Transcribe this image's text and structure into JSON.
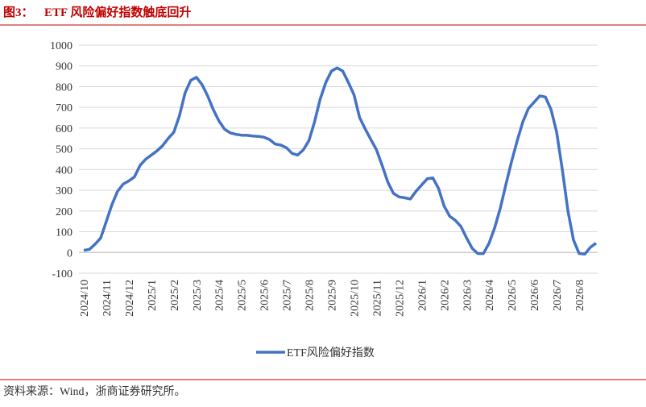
{
  "figure_label": "图3：",
  "source": "资料来源：Wind，浙商证券研究所。",
  "chart_data": {
    "type": "line",
    "title": "ETF 风险偏好指数触底回升",
    "categories": [
      "2024/10",
      null,
      null,
      null,
      "2024/11",
      null,
      null,
      null,
      "2024/12",
      null,
      null,
      null,
      "2025/1",
      null,
      null,
      null,
      "2025/2",
      null,
      null,
      null,
      "2025/3",
      null,
      null,
      null,
      "2025/4",
      null,
      null,
      null,
      "2025/5",
      null,
      null,
      null,
      "2025/6",
      null,
      null,
      null,
      "2025/7",
      null,
      null,
      null,
      "2025/8",
      null,
      null,
      null,
      "2025/9",
      null,
      null,
      null,
      "2025/10",
      null,
      null,
      null,
      "2025/11",
      null,
      null,
      null,
      "2025/12",
      null,
      null,
      null,
      "2026/1",
      null,
      null,
      null,
      "2026/2",
      null,
      null,
      null,
      "2026/3",
      null,
      null,
      null,
      "2026/4",
      null,
      null,
      null,
      "2026/5",
      null,
      null,
      null,
      "2026/6",
      null,
      null,
      null,
      "2026/7",
      null,
      null,
      null,
      "2026/8",
      null,
      null,
      null
    ],
    "series": [
      {
        "name": "ETF风险偏好指数",
        "color": "#4472c4",
        "values": [
          10,
          15,
          40,
          70,
          150,
          230,
          295,
          330,
          345,
          365,
          420,
          450,
          470,
          490,
          515,
          550,
          580,
          660,
          770,
          830,
          845,
          810,
          755,
          690,
          635,
          595,
          577,
          570,
          566,
          565,
          562,
          560,
          556,
          545,
          523,
          518,
          505,
          478,
          470,
          495,
          540,
          630,
          740,
          820,
          875,
          890,
          875,
          820,
          760,
          650,
          595,
          545,
          495,
          420,
          340,
          285,
          268,
          264,
          258,
          295,
          325,
          355,
          360,
          310,
          225,
          175,
          155,
          125,
          70,
          20,
          -5,
          -5,
          45,
          120,
          215,
          330,
          440,
          540,
          630,
          695,
          725,
          755,
          750,
          690,
          580,
          400,
          200,
          60,
          -5,
          -8,
          25,
          45
        ]
      }
    ],
    "ylim": [
      -100,
      1000
    ],
    "yticks": [
      -100,
      0,
      100,
      200,
      300,
      400,
      500,
      600,
      700,
      800,
      900,
      1000
    ],
    "grid": true,
    "legend": "bottom"
  }
}
